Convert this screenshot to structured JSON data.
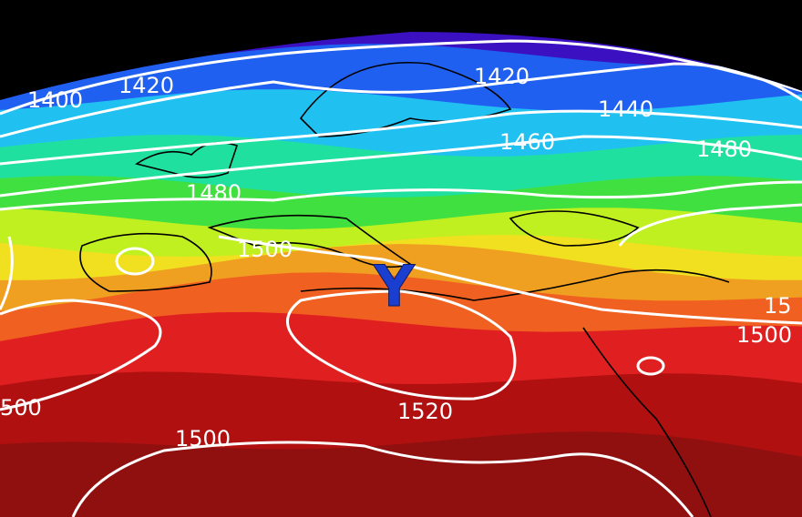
{
  "map": {
    "marker": {
      "label": "Y",
      "color": "#1a3fd0"
    },
    "contour_labels": [
      "1400",
      "1420",
      "1420",
      "1440",
      "1460",
      "1480",
      "1480",
      "1500",
      "500",
      "1520",
      "1500",
      "15",
      "1500"
    ],
    "color_scale": [
      "#3a10c0",
      "#2060f0",
      "#20c0f0",
      "#20e0a0",
      "#40e040",
      "#c0f020",
      "#f0e020",
      "#f0a020",
      "#f06020",
      "#e02020",
      "#b01010",
      "#901010"
    ],
    "background": "#000000",
    "contour_color": "#ffffff"
  }
}
